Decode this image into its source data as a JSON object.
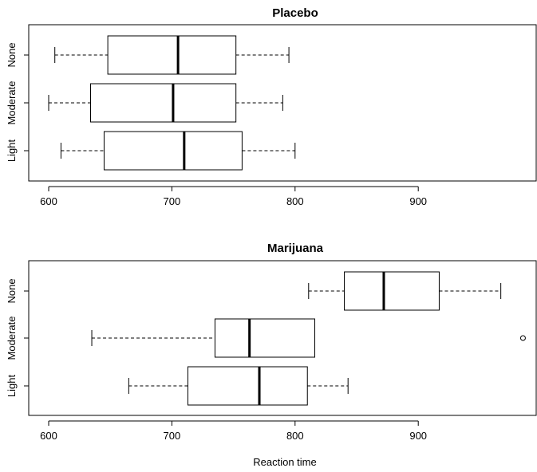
{
  "chart_data": [
    {
      "type": "boxplot",
      "title": "Placebo",
      "orientation": "horizontal",
      "categories": [
        "None",
        "Moderate",
        "Light"
      ],
      "boxes": [
        {
          "category": "None",
          "whisker_low": 605,
          "q1": 648,
          "median": 705,
          "q3": 752,
          "whisker_high": 795,
          "outliers": []
        },
        {
          "category": "Moderate",
          "whisker_low": 600,
          "q1": 634,
          "median": 701,
          "q3": 752,
          "whisker_high": 790,
          "outliers": []
        },
        {
          "category": "Light",
          "whisker_low": 610,
          "q1": 645,
          "median": 710,
          "q3": 757,
          "whisker_high": 800,
          "outliers": []
        }
      ],
      "xticks": [
        600,
        700,
        800,
        900
      ],
      "xlim": [
        583,
        990
      ],
      "xlabel": ""
    },
    {
      "type": "boxplot",
      "title": "Marijuana",
      "orientation": "horizontal",
      "categories": [
        "None",
        "Moderate",
        "Light"
      ],
      "boxes": [
        {
          "category": "None",
          "whisker_low": 811,
          "q1": 840,
          "median": 872,
          "q3": 917,
          "whisker_high": 967,
          "outliers": []
        },
        {
          "category": "Moderate",
          "whisker_low": 635,
          "q1": 735,
          "median": 763,
          "q3": 816,
          "whisker_high": 816,
          "outliers": [
            985
          ]
        },
        {
          "category": "Light",
          "whisker_low": 665,
          "q1": 713,
          "median": 771,
          "q3": 810,
          "whisker_high": 843,
          "outliers": []
        }
      ],
      "xticks": [
        600,
        700,
        800,
        900
      ],
      "xlim": [
        583,
        990
      ],
      "xlabel": "Reaction time"
    }
  ]
}
